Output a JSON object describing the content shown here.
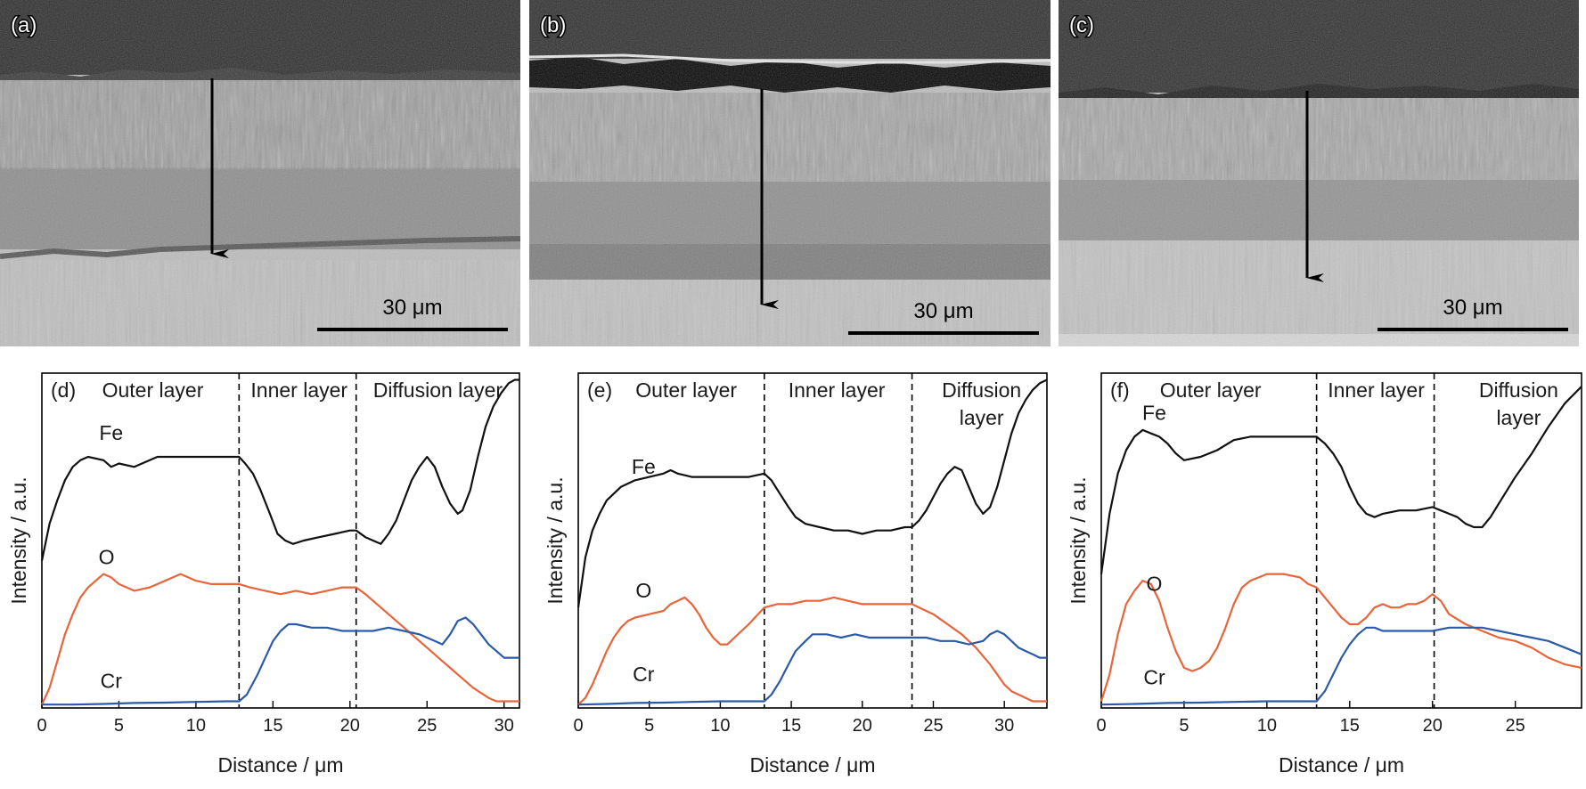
{
  "colors": {
    "Fe": "#111111",
    "O": "#e8643a",
    "Cr": "#2b5aa8",
    "arrow": "#000000"
  },
  "micrographs": [
    {
      "panel": "(a)",
      "scale_label": "30 μm"
    },
    {
      "panel": "(b)",
      "scale_label": "30 μm"
    },
    {
      "panel": "(c)",
      "scale_label": "30 μm"
    }
  ],
  "chart_data": [
    {
      "type": "line",
      "panel": "(d)",
      "xlabel": "Distance / μm",
      "ylabel": "Intensity / a.u.",
      "xlim": [
        0,
        31
      ],
      "xticks": [
        0,
        5,
        10,
        15,
        20,
        25,
        30
      ],
      "ylim": [
        0,
        100
      ],
      "grid": false,
      "region_labels": [
        {
          "text": "Outer layer",
          "x": 7.2
        },
        {
          "text": "Inner layer",
          "x": 16.7
        },
        {
          "text": "Diffusion layer",
          "x": 25.7
        }
      ],
      "boundaries": [
        12.8,
        20.4
      ],
      "series": [
        {
          "name": "Fe",
          "label_at": [
            4.5,
            80
          ],
          "x": [
            0,
            0.5,
            1,
            1.5,
            2,
            2.5,
            3,
            4,
            4.5,
            5,
            6,
            7,
            7.5,
            8,
            9,
            10,
            11,
            12,
            12.8,
            13.2,
            13.7,
            14.2,
            14.8,
            15.3,
            15.8,
            16.3,
            17,
            18,
            19,
            20,
            20.4,
            21,
            21.5,
            22,
            22.5,
            23,
            23.5,
            24,
            24.5,
            25,
            25.5,
            26,
            26.5,
            27,
            27.3,
            27.8,
            28.3,
            28.8,
            29.3,
            29.8,
            30.3,
            30.7,
            31
          ],
          "y": [
            44,
            55,
            62,
            68,
            72,
            74,
            75,
            74,
            72,
            73,
            72,
            74,
            75,
            75,
            75,
            75,
            75,
            75,
            75,
            73,
            70,
            65,
            58,
            52,
            50,
            49,
            50,
            51,
            52,
            53,
            53,
            51,
            50,
            49,
            52,
            56,
            62,
            68,
            72,
            75,
            72,
            66,
            61,
            58,
            59,
            65,
            75,
            84,
            90,
            94,
            97,
            98,
            98
          ]
        },
        {
          "name": "O",
          "label_at": [
            4.2,
            43
          ],
          "x": [
            0,
            0.5,
            1,
            1.5,
            2,
            2.5,
            3,
            3.5,
            4,
            4.5,
            5,
            5.5,
            6,
            7,
            8,
            9,
            10,
            11,
            12,
            12.8,
            13.5,
            14.5,
            15.5,
            16.5,
            17.5,
            18.5,
            19.5,
            20.4,
            21,
            22,
            23,
            24,
            25,
            26,
            27,
            28,
            29,
            29.5,
            30,
            30.5,
            31
          ],
          "y": [
            1,
            6,
            14,
            22,
            28,
            33,
            36,
            38,
            40,
            39,
            37,
            36,
            35,
            36,
            38,
            40,
            38,
            37,
            37,
            37,
            36,
            35,
            34,
            35,
            34,
            35,
            36,
            36,
            34,
            30,
            26,
            22,
            18,
            14,
            10,
            6,
            3,
            2,
            2,
            2,
            2
          ]
        },
        {
          "name": "Cr",
          "label_at": [
            4.5,
            6
          ],
          "x": [
            0,
            2,
            4,
            6,
            8,
            10,
            12,
            12.8,
            13.3,
            14,
            14.5,
            15,
            15.5,
            16,
            16.5,
            17.5,
            18.5,
            19.5,
            20.4,
            21.5,
            22.5,
            23.5,
            24.5,
            25.5,
            26,
            26.5,
            27,
            27.5,
            28,
            28.5,
            29,
            29.5,
            30,
            30.5,
            31
          ],
          "y": [
            1,
            1,
            1.2,
            1.5,
            1.6,
            1.8,
            2,
            2,
            4,
            10,
            15,
            20,
            23,
            25,
            25,
            24,
            24,
            23,
            23,
            23,
            24,
            23,
            22,
            20,
            19,
            22,
            26,
            27,
            25,
            22,
            19,
            17,
            15,
            15,
            15
          ]
        }
      ]
    },
    {
      "type": "line",
      "panel": "(e)",
      "xlabel": "Distance / μm",
      "ylabel": "Intensity / a.u.",
      "xlim": [
        0,
        33
      ],
      "xticks": [
        0,
        5,
        10,
        15,
        20,
        25,
        30
      ],
      "ylim": [
        0,
        100
      ],
      "grid": false,
      "region_labels": [
        {
          "text": "Outer layer",
          "x": 7.6
        },
        {
          "text": "Inner layer",
          "x": 18.2
        },
        {
          "text": "Diffusion",
          "x": 28.4
        },
        {
          "text": "layer",
          "x": 28.4
        }
      ],
      "boundaries": [
        13.1,
        23.5
      ],
      "series": [
        {
          "name": "Fe",
          "label_at": [
            4.6,
            70
          ],
          "x": [
            0,
            0.5,
            1,
            1.5,
            2,
            3,
            4,
            5,
            6,
            6.5,
            7,
            8,
            9,
            10,
            11,
            12,
            13.1,
            13.6,
            14.2,
            14.8,
            15.3,
            16,
            17,
            18,
            19,
            20,
            21,
            22,
            23,
            23.5,
            24,
            24.5,
            25,
            25.5,
            26,
            26.5,
            27,
            27.5,
            28,
            28.5,
            29,
            29.5,
            30,
            30.5,
            31,
            31.5,
            32,
            32.5,
            33
          ],
          "y": [
            30,
            45,
            53,
            58,
            62,
            66,
            68,
            69,
            70,
            71,
            70,
            69,
            69,
            69,
            69,
            69,
            70,
            68,
            64,
            60,
            57,
            55,
            54,
            53,
            53,
            52,
            53,
            53,
            54,
            54,
            56,
            59,
            63,
            67,
            70,
            72,
            71,
            66,
            61,
            58,
            60,
            66,
            74,
            82,
            88,
            92,
            95,
            97,
            98
          ]
        },
        {
          "name": "O",
          "label_at": [
            4.6,
            33
          ],
          "x": [
            0,
            0.5,
            1,
            1.5,
            2,
            2.5,
            3,
            3.5,
            4,
            5,
            6,
            6.5,
            7,
            7.5,
            8,
            8.5,
            9,
            9.5,
            10,
            10.5,
            11,
            12,
            13.1,
            14,
            15,
            16,
            17,
            18,
            19,
            20,
            21,
            22,
            23,
            23.5,
            24,
            25,
            26,
            27,
            28,
            29,
            29.5,
            30,
            30.5,
            31,
            31.5,
            32,
            32.5,
            33
          ],
          "y": [
            1,
            3,
            7,
            12,
            17,
            21,
            24,
            26,
            27,
            28,
            29,
            31,
            32,
            33,
            31,
            28,
            24,
            21,
            19,
            19,
            21,
            25,
            30,
            31,
            31,
            32,
            32,
            33,
            32,
            31,
            31,
            31,
            31,
            31,
            30,
            28,
            25,
            22,
            18,
            13,
            10,
            7,
            5,
            4,
            3,
            2,
            2,
            2
          ]
        },
        {
          "name": "Cr",
          "label_at": [
            4.6,
            8
          ],
          "x": [
            0,
            2,
            4,
            6,
            8,
            10,
            12,
            13.1,
            13.6,
            14.2,
            14.8,
            15.3,
            16,
            16.5,
            17.5,
            18.5,
            19.5,
            20.5,
            21.5,
            22.5,
            23.5,
            24.5,
            25.5,
            26.5,
            27.5,
            28.5,
            29,
            29.5,
            30,
            30.5,
            31,
            31.5,
            32,
            32.5,
            33
          ],
          "y": [
            1,
            1.2,
            1.5,
            1.6,
            1.8,
            2,
            2,
            2,
            4,
            8,
            13,
            17,
            20,
            22,
            22,
            21,
            22,
            21,
            21,
            21,
            21,
            21,
            20,
            20,
            19,
            20,
            22,
            23,
            22,
            20,
            18,
            17,
            16,
            15,
            15
          ]
        }
      ]
    },
    {
      "type": "line",
      "panel": "(f)",
      "xlabel": "Distance / μm",
      "ylabel": "Intensity / a.u.",
      "xlim": [
        0,
        29
      ],
      "xticks": [
        0,
        5,
        10,
        15,
        20,
        25
      ],
      "ylim": [
        0,
        100
      ],
      "grid": false,
      "region_labels": [
        {
          "text": "Outer layer",
          "x": 6.6
        },
        {
          "text": "Inner layer",
          "x": 16.6
        },
        {
          "text": "Diffusion",
          "x": 25.2
        },
        {
          "text": "layer",
          "x": 25.2
        }
      ],
      "boundaries": [
        13.0,
        20.1
      ],
      "series": [
        {
          "name": "Fe",
          "label_at": [
            3.2,
            86
          ],
          "x": [
            0,
            0.5,
            1,
            1.5,
            2,
            2.5,
            3,
            3.5,
            4,
            4.5,
            5,
            6,
            7,
            8,
            9,
            10,
            11,
            12,
            13,
            13.5,
            14,
            14.5,
            15,
            15.5,
            16,
            16.5,
            17,
            18,
            19,
            20,
            20.5,
            21,
            21.5,
            22,
            22.5,
            23,
            23.5,
            24,
            24.5,
            25,
            26,
            27,
            28,
            29
          ],
          "y": [
            40,
            58,
            70,
            77,
            81,
            83,
            82,
            81,
            79,
            76,
            74,
            75,
            77,
            80,
            81,
            81,
            81,
            81,
            81,
            79,
            76,
            72,
            66,
            61,
            58,
            57,
            58,
            59,
            59,
            60,
            59,
            58,
            57,
            55,
            54,
            54,
            57,
            61,
            65,
            69,
            76,
            84,
            91,
            96
          ]
        },
        {
          "name": "O",
          "label_at": [
            3.2,
            35
          ],
          "x": [
            0,
            0.5,
            1,
            1.5,
            2,
            2.5,
            3,
            3.5,
            4,
            4.5,
            5,
            5.5,
            6,
            6.5,
            7,
            7.5,
            8,
            8.5,
            9,
            9.5,
            10,
            11,
            12,
            12.5,
            13,
            13.5,
            14,
            14.5,
            15,
            15.5,
            16,
            16.5,
            17,
            17.5,
            18,
            18.5,
            19,
            19.5,
            20,
            20.5,
            21,
            22,
            23,
            24,
            25,
            26,
            27,
            28,
            29
          ],
          "y": [
            2,
            10,
            22,
            31,
            35,
            38,
            37,
            32,
            24,
            17,
            12,
            11,
            12,
            14,
            18,
            24,
            31,
            36,
            38,
            39,
            40,
            40,
            39,
            37,
            36,
            33,
            30,
            27,
            25,
            25,
            27,
            30,
            31,
            30,
            30,
            31,
            31,
            32,
            34,
            32,
            28,
            25,
            23,
            21,
            20,
            18,
            15,
            13,
            12
          ]
        },
        {
          "name": "Cr",
          "label_at": [
            3.2,
            7
          ],
          "x": [
            0,
            2,
            4,
            6,
            8,
            10,
            12,
            13,
            13.5,
            14,
            14.5,
            15,
            15.5,
            16,
            16.5,
            17,
            18,
            19,
            20,
            21,
            22,
            22.5,
            23,
            24,
            25,
            26,
            27,
            28,
            29
          ],
          "y": [
            1,
            1.2,
            1.5,
            1.6,
            1.8,
            2,
            2,
            2,
            5,
            10,
            15,
            19,
            22,
            24,
            24,
            23,
            23,
            23,
            23,
            24,
            24,
            24,
            24,
            23,
            22,
            21,
            20,
            18,
            16
          ]
        }
      ]
    }
  ]
}
